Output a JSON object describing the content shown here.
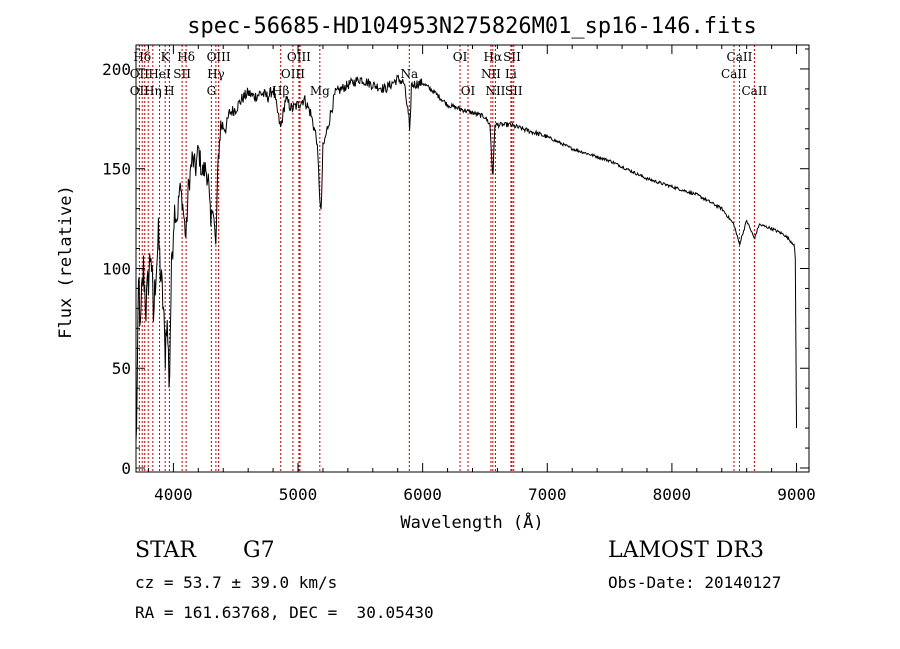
{
  "chart_data": {
    "type": "line",
    "title": "spec-56685-HD104953N275826M01_sp16-146.fits",
    "xlabel": "Wavelength (Å)",
    "ylabel": "Flux (relative)",
    "xlim": [
      3700,
      9100
    ],
    "ylim": [
      -2,
      212
    ],
    "xticks": [
      4000,
      5000,
      6000,
      7000,
      8000,
      9000
    ],
    "xtick_labels": [
      "4000",
      "5000",
      "6000",
      "7000",
      "8000",
      "9000"
    ],
    "yticks": [
      0,
      50,
      100,
      150,
      200
    ],
    "ytick_labels": [
      "0",
      "50",
      "100",
      "150",
      "200"
    ],
    "grid": false,
    "series": [
      {
        "name": "spectrum",
        "anchors": [
          [
            3700,
            10
          ],
          [
            3710,
            40
          ],
          [
            3722,
            100
          ],
          [
            3735,
            65
          ],
          [
            3745,
            85
          ],
          [
            3760,
            100
          ],
          [
            3780,
            80
          ],
          [
            3800,
            95
          ],
          [
            3820,
            110
          ],
          [
            3840,
            75
          ],
          [
            3860,
            100
          ],
          [
            3880,
            115
          ],
          [
            3900,
            95
          ],
          [
            3920,
            80
          ],
          [
            3933,
            55
          ],
          [
            3945,
            75
          ],
          [
            3955,
            65
          ],
          [
            3968,
            40
          ],
          [
            3975,
            70
          ],
          [
            3990,
            110
          ],
          [
            4010,
            130
          ],
          [
            4030,
            125
          ],
          [
            4050,
            140
          ],
          [
            4070,
            135
          ],
          [
            4101,
            115
          ],
          [
            4120,
            140
          ],
          [
            4150,
            155
          ],
          [
            4180,
            150
          ],
          [
            4200,
            160
          ],
          [
            4230,
            148
          ],
          [
            4260,
            150
          ],
          [
            4280,
            145
          ],
          [
            4300,
            120
          ],
          [
            4315,
            135
          ],
          [
            4340,
            110
          ],
          [
            4360,
            155
          ],
          [
            4380,
            172
          ],
          [
            4420,
            170
          ],
          [
            4450,
            178
          ],
          [
            4500,
            180
          ],
          [
            4550,
            185
          ],
          [
            4600,
            188
          ],
          [
            4650,
            186
          ],
          [
            4700,
            188
          ],
          [
            4760,
            186
          ],
          [
            4800,
            190
          ],
          [
            4861,
            170
          ],
          [
            4900,
            185
          ],
          [
            4950,
            180
          ],
          [
            5000,
            182
          ],
          [
            5050,
            185
          ],
          [
            5100,
            178
          ],
          [
            5150,
            165
          ],
          [
            5172,
            140
          ],
          [
            5184,
            125
          ],
          [
            5200,
            160
          ],
          [
            5270,
            180
          ],
          [
            5300,
            188
          ],
          [
            5400,
            192
          ],
          [
            5500,
            195
          ],
          [
            5600,
            192
          ],
          [
            5700,
            190
          ],
          [
            5800,
            195
          ],
          [
            5850,
            193
          ],
          [
            5890,
            175
          ],
          [
            5896,
            165
          ],
          [
            5910,
            192
          ],
          [
            6000,
            193
          ],
          [
            6100,
            188
          ],
          [
            6200,
            182
          ],
          [
            6300,
            180
          ],
          [
            6400,
            178
          ],
          [
            6500,
            176
          ],
          [
            6540,
            172
          ],
          [
            6563,
            145
          ],
          [
            6580,
            172
          ],
          [
            6650,
            172
          ],
          [
            6700,
            172
          ],
          [
            6800,
            170
          ],
          [
            7000,
            166
          ],
          [
            7200,
            160
          ],
          [
            7500,
            154
          ],
          [
            7800,
            145
          ],
          [
            8000,
            141
          ],
          [
            8200,
            137
          ],
          [
            8400,
            130
          ],
          [
            8498,
            122
          ],
          [
            8542,
            112
          ],
          [
            8600,
            124
          ],
          [
            8662,
            115
          ],
          [
            8700,
            122
          ],
          [
            8800,
            120
          ],
          [
            8900,
            117
          ],
          [
            8980,
            112
          ],
          [
            8990,
            105
          ],
          [
            9000,
            20
          ]
        ],
        "noise_amplitude": {
          "3700-4000": 22,
          "4000-4400": 12,
          "4400-5300": 6,
          "5300-6000": 5,
          "6000-7000": 2.5,
          "7000-9000": 1.5
        }
      }
    ],
    "line_markers": [
      {
        "label": "Hδ",
        "wavelength": 3750,
        "row": 0
      },
      {
        "label": "K",
        "wavelength": 3934,
        "row": 0
      },
      {
        "label": "Hδ",
        "wavelength": 4102,
        "row": 0
      },
      {
        "label": "OIII",
        "wavelength": 4363,
        "row": 0
      },
      {
        "label": "OIII",
        "wavelength": 5007,
        "row": 0
      },
      {
        "label": "OI",
        "wavelength": 6300,
        "row": 0
      },
      {
        "label": "Hα",
        "wavelength": 6563,
        "row": 0
      },
      {
        "label": "SII",
        "wavelength": 6717,
        "row": 0
      },
      {
        "label": "CaII",
        "wavelength": 8542,
        "row": 0
      },
      {
        "label": "OII",
        "wavelength": 3727,
        "row": 1
      },
      {
        "label": "HeI",
        "wavelength": 3889,
        "row": 1
      },
      {
        "label": "SII",
        "wavelength": 4070,
        "row": 1
      },
      {
        "label": "Hγ",
        "wavelength": 4341,
        "row": 1
      },
      {
        "label": "OIII",
        "wavelength": 4959,
        "row": 1
      },
      {
        "label": "Na",
        "wavelength": 5893,
        "row": 1
      },
      {
        "label": "NII",
        "wavelength": 6548,
        "row": 1
      },
      {
        "label": "Li",
        "wavelength": 6708,
        "row": 1
      },
      {
        "label": "CaII",
        "wavelength": 8498,
        "row": 1
      },
      {
        "label": "OII",
        "wavelength": 3727,
        "row": 2
      },
      {
        "label": "Hη",
        "wavelength": 3835,
        "row": 2
      },
      {
        "label": "H",
        "wavelength": 3968,
        "row": 2
      },
      {
        "label": "G",
        "wavelength": 4305,
        "row": 2
      },
      {
        "label": "Hβ",
        "wavelength": 4861,
        "row": 2
      },
      {
        "label": "Mg",
        "wavelength": 5175,
        "row": 2
      },
      {
        "label": "OI",
        "wavelength": 6364,
        "row": 2
      },
      {
        "label": "NII",
        "wavelength": 6584,
        "row": 2
      },
      {
        "label": "SII",
        "wavelength": 6731,
        "row": 2
      },
      {
        "label": "CaII",
        "wavelength": 8662,
        "row": 2
      }
    ],
    "extra_marker_lines": [
      3770,
      3798,
      3889,
      3934,
      4070,
      5016
    ]
  },
  "info": {
    "class": "STAR",
    "subclass": "G7",
    "survey": "LAMOST DR3",
    "cz": "cz = 53.7 ± 39.0 km/s",
    "obs_date": "Obs-Date: 20140127",
    "ra_dec": "RA = 161.63768, DEC =  30.05430"
  },
  "colors": {
    "line": "#000000",
    "marker": "#c00000",
    "background": "#ffffff"
  }
}
